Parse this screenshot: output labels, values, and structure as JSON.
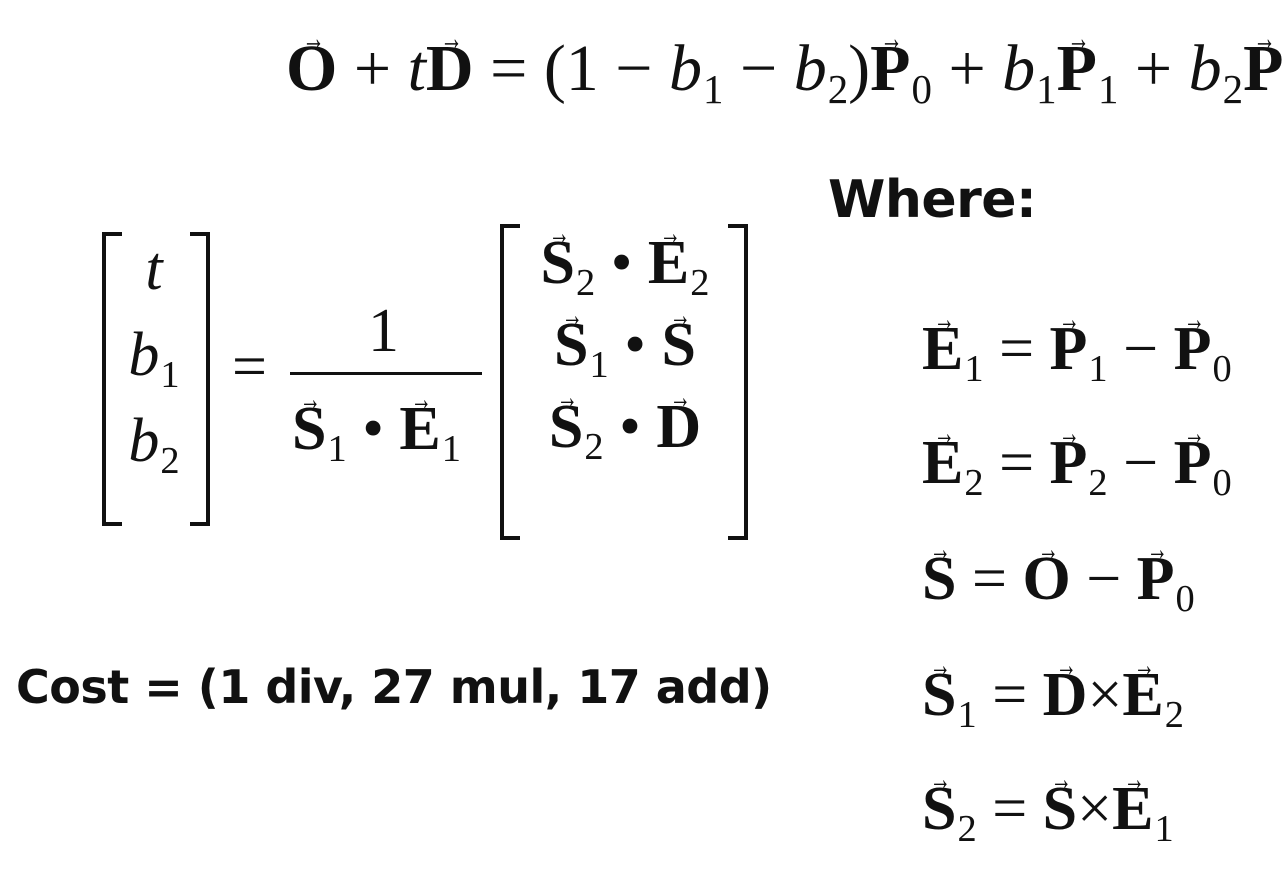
{
  "main_equation": {
    "O": "O",
    "plus": "+",
    "t": "t",
    "D": "D",
    "eq": "=",
    "paren_open": "(1 −",
    "b": "b",
    "minus": "−",
    "paren_close": ")",
    "P": "P",
    "s0": "0",
    "s1": "1",
    "s2": "2"
  },
  "where_label": "Where:",
  "solution": {
    "vec": {
      "t": "t",
      "b": "b",
      "s1": "1",
      "s2": "2"
    },
    "eq": "=",
    "numerator": "1",
    "S": "S",
    "E": "E",
    "D": "D",
    "dot": "•"
  },
  "cost_label": "Cost = (1 div, 27 mul, 17 add)",
  "definitions": {
    "E": "E",
    "P": "P",
    "S": "S",
    "O": "O",
    "D": "D",
    "eq": "=",
    "minus": "−",
    "times": "×",
    "s0": "0",
    "s1": "1",
    "s2": "2"
  }
}
